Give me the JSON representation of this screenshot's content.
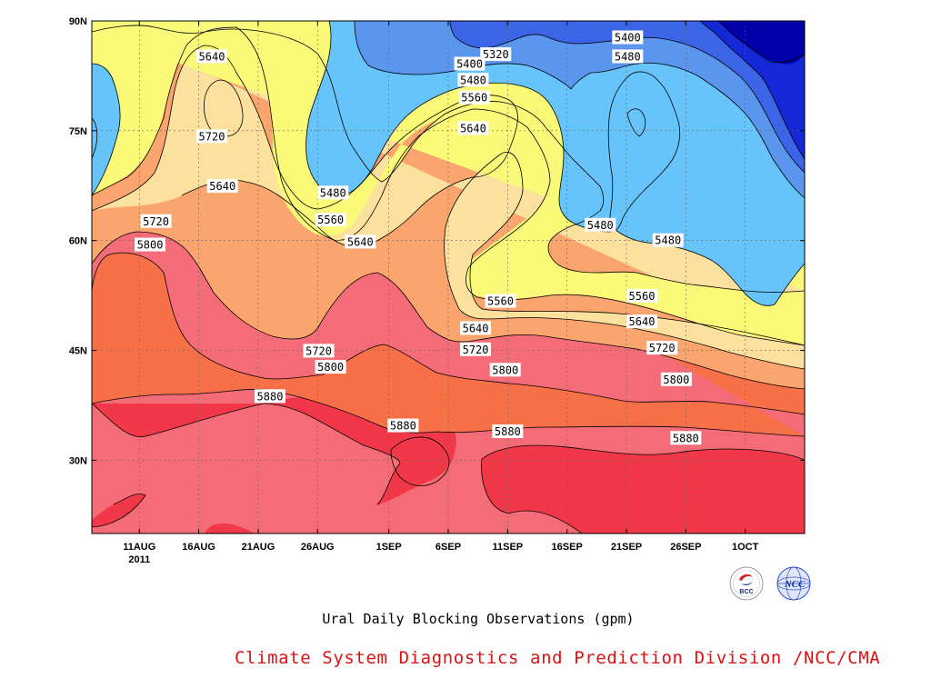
{
  "chart_data": {
    "type": "heatmap",
    "title": "Ural Daily Blocking Observations (gpm)",
    "source": "Climate System Diagnostics and Prediction Division /NCC/CMA",
    "x_ticks": [
      {
        "label": "11AUG",
        "sub": "2011",
        "day": 7
      },
      {
        "label": "16AUG",
        "day": 12
      },
      {
        "label": "21AUG",
        "day": 17
      },
      {
        "label": "26AUG",
        "day": 22
      },
      {
        "label": "1SEP",
        "day": 28
      },
      {
        "label": "6SEP",
        "day": 33
      },
      {
        "label": "11SEP",
        "day": 38
      },
      {
        "label": "16SEP",
        "day": 43
      },
      {
        "label": "21SEP",
        "day": 48
      },
      {
        "label": "26SEP",
        "day": 53
      },
      {
        "label": "1OCT",
        "day": 58
      }
    ],
    "y_ticks": [
      {
        "label": "90N",
        "lat": 90
      },
      {
        "label": "75N",
        "lat": 75
      },
      {
        "label": "60N",
        "lat": 60
      },
      {
        "label": "45N",
        "lat": 45
      },
      {
        "label": "30N",
        "lat": 30
      }
    ],
    "xlim_day": [
      3,
      63
    ],
    "ylim_lat": [
      20,
      90
    ],
    "grid": true,
    "contour_levels": [
      5320,
      5400,
      5480,
      5560,
      5640,
      5720,
      5800,
      5880
    ],
    "level_colors": {
      "below_5320": "#0000a8",
      "5240": "#1428d8",
      "5320": "#3c64e6",
      "5400": "#5a96ee",
      "5480": "#66c4fa",
      "5560": "#fafa78",
      "5640": "#fce09e",
      "5720": "#faa46e",
      "5800": "#f87048",
      "5880": "#f46c78",
      "above_5880": "#f03848"
    },
    "contour_labels": [
      {
        "text": "5640",
        "day": 13.1,
        "lat": 85.1
      },
      {
        "text": "5720",
        "day": 13.1,
        "lat": 74.2
      },
      {
        "text": "5640",
        "day": 14.0,
        "lat": 67.4
      },
      {
        "text": "5720",
        "day": 8.4,
        "lat": 62.6
      },
      {
        "text": "5800",
        "day": 7.9,
        "lat": 59.4
      },
      {
        "text": "5480",
        "day": 23.3,
        "lat": 66.5
      },
      {
        "text": "5560",
        "day": 23.1,
        "lat": 62.8
      },
      {
        "text": "5640",
        "day": 25.6,
        "lat": 59.8
      },
      {
        "text": "5720",
        "day": 22.1,
        "lat": 44.9
      },
      {
        "text": "5800",
        "day": 23.1,
        "lat": 42.7
      },
      {
        "text": "5880",
        "day": 18.0,
        "lat": 38.7
      },
      {
        "text": "5880",
        "day": 29.2,
        "lat": 34.7
      },
      {
        "text": "5320",
        "day": 37.0,
        "lat": 85.4
      },
      {
        "text": "5400",
        "day": 34.8,
        "lat": 84.1
      },
      {
        "text": "5480",
        "day": 35.1,
        "lat": 81.9
      },
      {
        "text": "5560",
        "day": 35.2,
        "lat": 79.5
      },
      {
        "text": "5640",
        "day": 35.1,
        "lat": 75.3
      },
      {
        "text": "5560",
        "day": 37.4,
        "lat": 51.7
      },
      {
        "text": "5640",
        "day": 35.3,
        "lat": 48.0
      },
      {
        "text": "5720",
        "day": 35.3,
        "lat": 45.1
      },
      {
        "text": "5800",
        "day": 37.8,
        "lat": 42.3
      },
      {
        "text": "5880",
        "day": 38.0,
        "lat": 33.9
      },
      {
        "text": "5400",
        "day": 48.1,
        "lat": 87.7
      },
      {
        "text": "5480",
        "day": 48.1,
        "lat": 85.1
      },
      {
        "text": "5480",
        "day": 45.8,
        "lat": 62.1
      },
      {
        "text": "5480",
        "day": 51.5,
        "lat": 60.0
      },
      {
        "text": "5560",
        "day": 49.3,
        "lat": 52.4
      },
      {
        "text": "5640",
        "day": 49.3,
        "lat": 48.9
      },
      {
        "text": "5720",
        "day": 51.0,
        "lat": 45.3
      },
      {
        "text": "5800",
        "day": 52.2,
        "lat": 41.0
      },
      {
        "text": "5880",
        "day": 53.0,
        "lat": 33.0
      }
    ]
  },
  "logos": {
    "bcc_text": "BCC",
    "ncc_text": "NCC"
  }
}
